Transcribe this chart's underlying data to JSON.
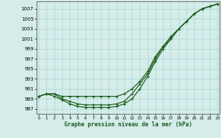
{
  "title": "",
  "xlabel": "Graphe pression niveau de la mer (hPa)",
  "background_color": "#d4ecea",
  "grid_color": "#b0d8d4",
  "line_color": "#1a5c1a",
  "x_ticks": [
    0,
    1,
    2,
    3,
    4,
    5,
    6,
    7,
    8,
    9,
    10,
    11,
    12,
    13,
    14,
    15,
    16,
    17,
    18,
    19,
    20,
    21,
    22,
    23
  ],
  "y_ticks": [
    987,
    989,
    991,
    993,
    995,
    997,
    999,
    1001,
    1003,
    1005,
    1007
  ],
  "ylim": [
    986.0,
    1008.5
  ],
  "xlim": [
    -0.3,
    23.3
  ],
  "line1_x": [
    0,
    1,
    2,
    3,
    4,
    5,
    6,
    7,
    8,
    9,
    10,
    11,
    12,
    13,
    14,
    15,
    16,
    17,
    18,
    19,
    20,
    21,
    22,
    23
  ],
  "line1_y": [
    989.5,
    990.0,
    990.0,
    989.5,
    989.5,
    989.5,
    989.5,
    989.5,
    989.5,
    989.5,
    989.5,
    990.0,
    991.0,
    992.5,
    994.5,
    997.5,
    999.5,
    1001.0,
    1003.0,
    1004.5,
    1006.0,
    1007.0,
    1007.5,
    1008.0
  ],
  "line2_x": [
    0,
    1,
    2,
    3,
    4,
    5,
    6,
    7,
    8,
    9,
    10,
    11,
    12,
    13,
    14,
    15,
    16,
    17,
    18,
    19,
    20,
    21,
    22,
    23
  ],
  "line2_y": [
    989.5,
    990.0,
    990.0,
    989.0,
    988.5,
    988.0,
    987.8,
    987.8,
    987.8,
    987.8,
    988.0,
    988.5,
    990.0,
    992.0,
    994.0,
    997.0,
    999.5,
    1001.5,
    1003.0,
    1004.5,
    1006.0,
    1007.0,
    1007.5,
    1008.0
  ],
  "line3_x": [
    0,
    1,
    2,
    3,
    4,
    5,
    6,
    7,
    8,
    9,
    10,
    11,
    12,
    13,
    14,
    15,
    16,
    17,
    18,
    19,
    20,
    21,
    22,
    23
  ],
  "line3_y": [
    989.5,
    990.0,
    989.5,
    988.8,
    988.0,
    987.5,
    987.3,
    987.3,
    987.3,
    987.3,
    987.5,
    988.0,
    989.0,
    991.0,
    993.5,
    996.5,
    999.0,
    1001.0,
    1003.0,
    1004.5,
    1006.0,
    1007.0,
    1007.5,
    1008.0
  ]
}
